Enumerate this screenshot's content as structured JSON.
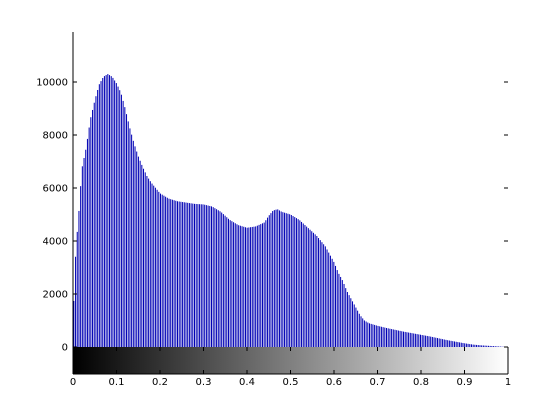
{
  "chart_data": {
    "type": "bar",
    "title": "",
    "xlabel": "",
    "ylabel": "",
    "xlim": [
      0,
      1
    ],
    "ylim": [
      -1000,
      12000
    ],
    "grid": false,
    "legend": "none",
    "bar_color": "#0000b4",
    "colorbar": {
      "from_color": "#000000",
      "to_color": "#ffffff",
      "x_range": [
        0,
        1
      ]
    },
    "yticks": [
      {
        "value": 0,
        "label": "0"
      },
      {
        "value": 2000,
        "label": "2000"
      },
      {
        "value": 4000,
        "label": "4000"
      },
      {
        "value": 6000,
        "label": "6000"
      },
      {
        "value": 8000,
        "label": "8000"
      },
      {
        "value": 10000,
        "label": "10000"
      }
    ],
    "xticks": [
      {
        "value": 0,
        "label": "0"
      },
      {
        "value": 0.1,
        "label": "0.1"
      },
      {
        "value": 0.2,
        "label": "0.2"
      },
      {
        "value": 0.3,
        "label": "0.3"
      },
      {
        "value": 0.4,
        "label": "0.4"
      },
      {
        "value": 0.5,
        "label": "0.5"
      },
      {
        "value": 0.6,
        "label": "0.6"
      },
      {
        "value": 0.7,
        "label": "0.7"
      },
      {
        "value": 0.8,
        "label": "0.8"
      },
      {
        "value": 0.9,
        "label": "0.9"
      },
      {
        "value": 1,
        "label": "1"
      }
    ],
    "profile": [
      [
        0.0,
        800
      ],
      [
        0.005,
        3200
      ],
      [
        0.01,
        4400
      ],
      [
        0.015,
        5400
      ],
      [
        0.02,
        6700
      ],
      [
        0.03,
        7500
      ],
      [
        0.04,
        8600
      ],
      [
        0.05,
        9300
      ],
      [
        0.06,
        9900
      ],
      [
        0.07,
        10200
      ],
      [
        0.08,
        10300
      ],
      [
        0.09,
        10200
      ],
      [
        0.1,
        9950
      ],
      [
        0.11,
        9600
      ],
      [
        0.12,
        9000
      ],
      [
        0.13,
        8300
      ],
      [
        0.14,
        7700
      ],
      [
        0.15,
        7200
      ],
      [
        0.16,
        6800
      ],
      [
        0.17,
        6450
      ],
      [
        0.18,
        6200
      ],
      [
        0.19,
        6000
      ],
      [
        0.2,
        5800
      ],
      [
        0.22,
        5600
      ],
      [
        0.24,
        5500
      ],
      [
        0.26,
        5450
      ],
      [
        0.28,
        5400
      ],
      [
        0.3,
        5380
      ],
      [
        0.32,
        5300
      ],
      [
        0.34,
        5100
      ],
      [
        0.36,
        4800
      ],
      [
        0.38,
        4600
      ],
      [
        0.4,
        4500
      ],
      [
        0.42,
        4550
      ],
      [
        0.44,
        4700
      ],
      [
        0.45,
        4950
      ],
      [
        0.46,
        5150
      ],
      [
        0.47,
        5200
      ],
      [
        0.48,
        5100
      ],
      [
        0.49,
        5050
      ],
      [
        0.5,
        5000
      ],
      [
        0.51,
        4900
      ],
      [
        0.52,
        4800
      ],
      [
        0.54,
        4500
      ],
      [
        0.56,
        4200
      ],
      [
        0.58,
        3800
      ],
      [
        0.6,
        3200
      ],
      [
        0.61,
        2800
      ],
      [
        0.62,
        2500
      ],
      [
        0.63,
        2100
      ],
      [
        0.64,
        1800
      ],
      [
        0.65,
        1500
      ],
      [
        0.66,
        1200
      ],
      [
        0.67,
        1000
      ],
      [
        0.68,
        900
      ],
      [
        0.7,
        800
      ],
      [
        0.72,
        720
      ],
      [
        0.74,
        650
      ],
      [
        0.76,
        580
      ],
      [
        0.78,
        520
      ],
      [
        0.8,
        460
      ],
      [
        0.82,
        400
      ],
      [
        0.84,
        330
      ],
      [
        0.86,
        260
      ],
      [
        0.88,
        200
      ],
      [
        0.9,
        140
      ],
      [
        0.92,
        90
      ],
      [
        0.94,
        60
      ],
      [
        0.96,
        40
      ],
      [
        0.98,
        20
      ],
      [
        1.0,
        0
      ]
    ]
  }
}
